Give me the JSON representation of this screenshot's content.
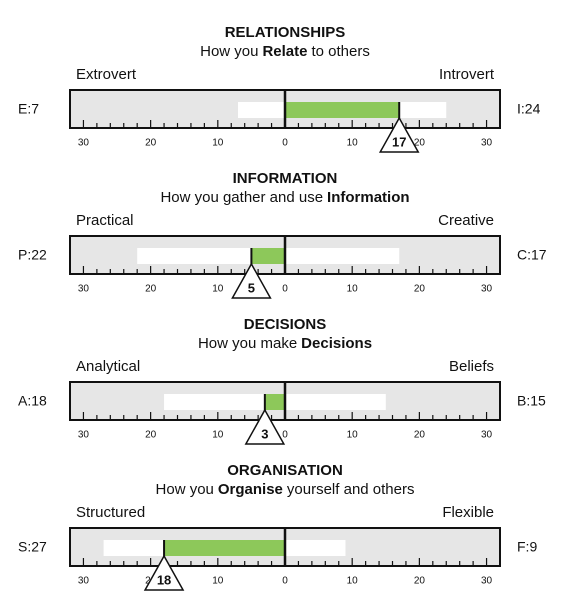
{
  "chart_data": [
    {
      "type": "bar",
      "title": "RELATIONSHIPS",
      "subtitle": [
        {
          "text": "How you"
        },
        {
          "text": "Relate",
          "bold": true
        },
        {
          "text": "to others"
        }
      ],
      "left": {
        "name": "Extrovert",
        "score": {
          "value": 7,
          "label": "E:7"
        }
      },
      "right": {
        "name": "Introvert",
        "score": {
          "value": 24,
          "label": "I:24"
        }
      },
      "difference": 17,
      "xlim": [
        -32,
        32
      ],
      "xticks": [
        {
          "value": -30,
          "label": "30"
        },
        {
          "value": -20,
          "label": "20"
        },
        {
          "value": -10,
          "label": "10"
        },
        0,
        10,
        20,
        30
      ],
      "colors": {
        "background": "#e6e6e6",
        "score": "#ffffff",
        "difference": "#8dc85a"
      }
    },
    {
      "type": "bar",
      "title": "INFORMATION",
      "subtitle": [
        {
          "text": "How you gather and use"
        },
        {
          "text": "Information",
          "bold": true
        }
      ],
      "left": {
        "name": "Practical",
        "score": {
          "value": 22,
          "label": "P:22"
        }
      },
      "right": {
        "name": "Creative",
        "score": {
          "value": 17,
          "label": "C:17"
        }
      },
      "difference": {
        "value": -5,
        "label": "5"
      },
      "xlim": [
        -32,
        32
      ],
      "xticks": [
        {
          "value": -30,
          "label": "30"
        },
        {
          "value": -20,
          "label": "20"
        },
        {
          "value": -10,
          "label": "10"
        },
        0,
        10,
        20,
        30
      ],
      "colors": {
        "background": "#e6e6e6",
        "score": "#ffffff",
        "difference": "#8dc85a"
      }
    },
    {
      "type": "bar",
      "title": "DECISIONS",
      "subtitle": [
        {
          "text": "How you make"
        },
        {
          "text": "Decisions",
          "bold": true
        }
      ],
      "left": {
        "name": "Analytical",
        "score": {
          "value": 18,
          "label": "A:18"
        }
      },
      "right": {
        "name": "Beliefs",
        "score": {
          "value": 15,
          "label": "B:15"
        }
      },
      "difference": {
        "value": -3,
        "label": "3"
      },
      "xlim": [
        -32,
        32
      ],
      "xticks": [
        {
          "value": -30,
          "label": "30"
        },
        {
          "value": -20,
          "label": "20"
        },
        {
          "value": -10,
          "label": "10"
        },
        0,
        10,
        20,
        30
      ],
      "colors": {
        "background": "#e6e6e6",
        "score": "#ffffff",
        "difference": "#8dc85a"
      }
    },
    {
      "type": "bar",
      "title": "ORGANISATION",
      "subtitle": [
        {
          "text": "How you"
        },
        {
          "text": "Organise",
          "bold": true
        },
        {
          "text": "yourself and others"
        }
      ],
      "left": {
        "name": "Structured",
        "score": {
          "value": 27,
          "label": "S:27"
        }
      },
      "right": {
        "name": "Flexible",
        "score": {
          "value": 9,
          "label": "F:9"
        }
      },
      "difference": {
        "value": -18,
        "label": "18"
      },
      "xlim": [
        -32,
        32
      ],
      "xticks": [
        {
          "value": -30,
          "label": "30"
        },
        {
          "value": -20,
          "label": "20"
        },
        {
          "value": -10,
          "label": "10"
        },
        0,
        10,
        20,
        30
      ],
      "colors": {
        "background": "#e6e6e6",
        "score": "#ffffff",
        "difference": "#8dc85a"
      }
    }
  ]
}
